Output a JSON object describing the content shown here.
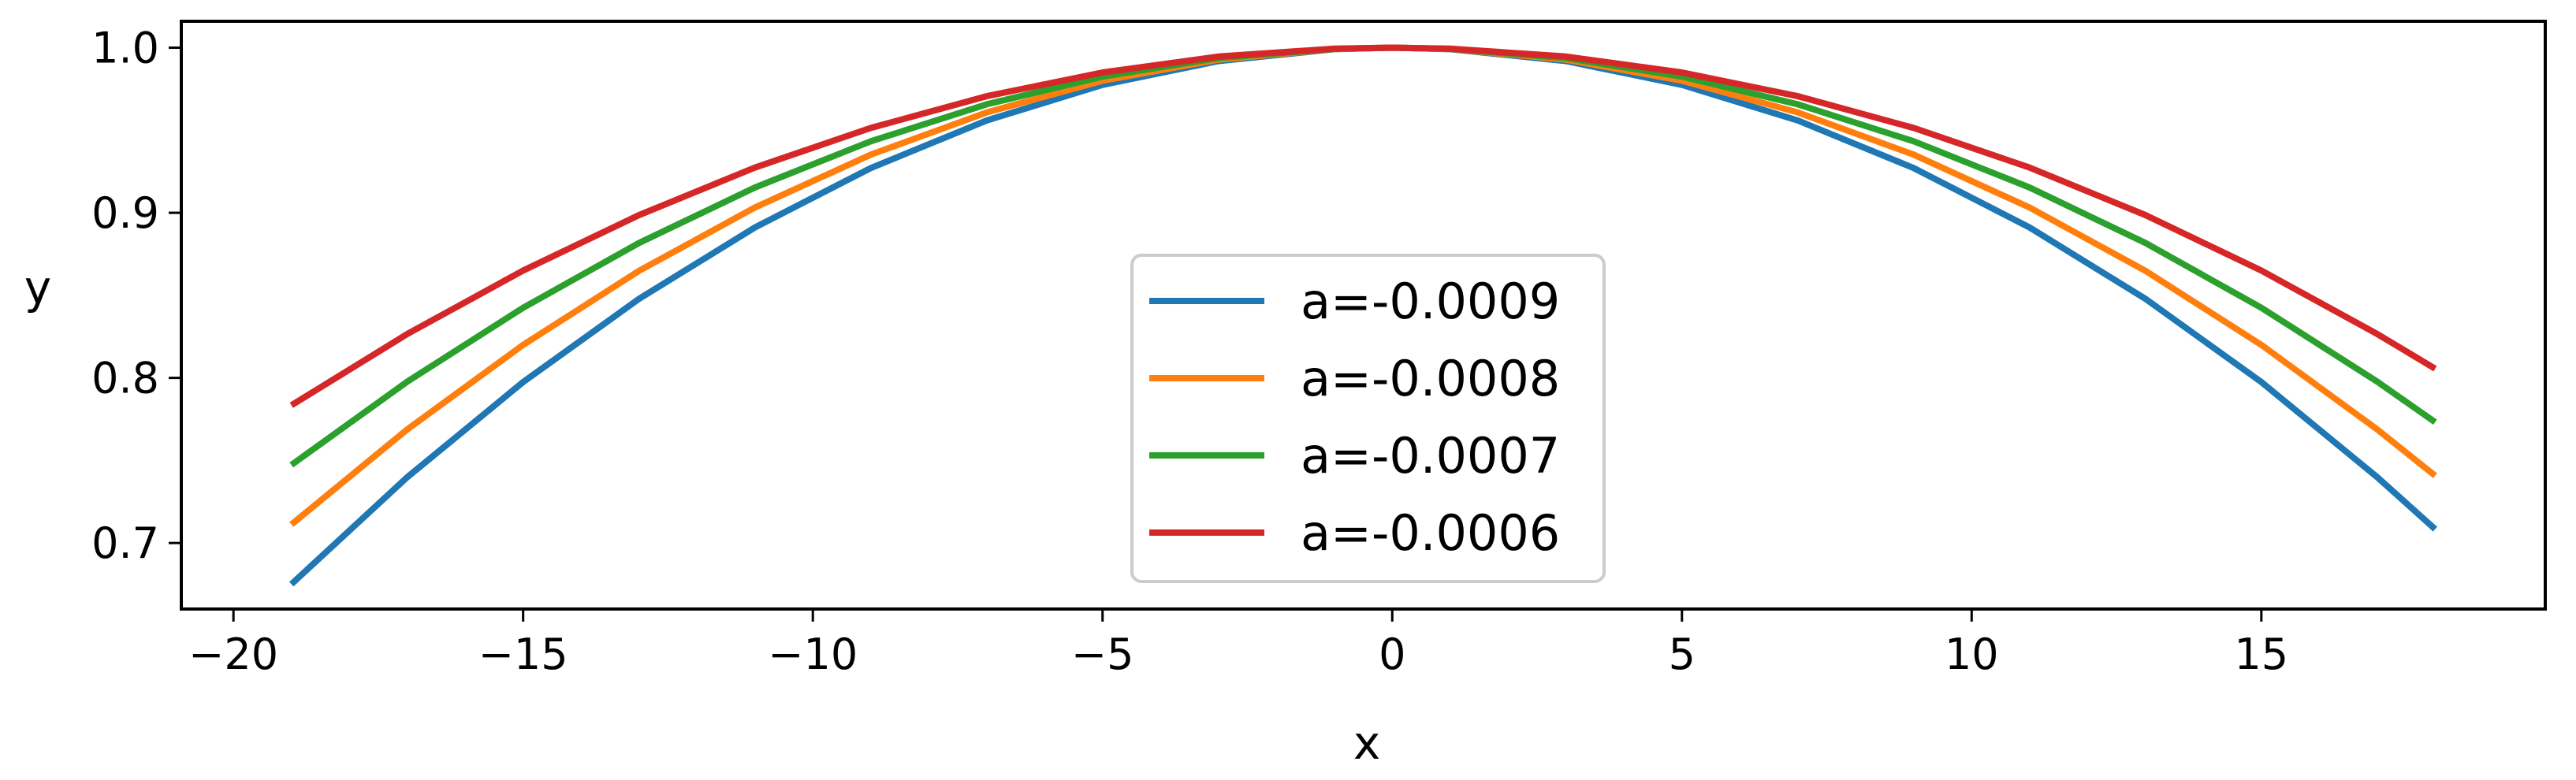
{
  "chart_data": {
    "type": "line",
    "title": "",
    "xlabel": "x",
    "ylabel": "y",
    "xlim": [
      -20.9,
      19.9
    ],
    "ylim": [
      0.66,
      1.016
    ],
    "x_ticks": [
      -20,
      -15,
      -10,
      -5,
      0,
      5,
      10,
      15
    ],
    "x_tick_labels": [
      "−20",
      "−15",
      "−10",
      "−5",
      "0",
      "5",
      "10",
      "15"
    ],
    "y_ticks": [
      0.7,
      0.8,
      0.9,
      1.0
    ],
    "y_tick_labels": [
      "0.7",
      "0.8",
      "0.9",
      "1.0"
    ],
    "grid": false,
    "legend_position": "lower center",
    "x": [
      -19,
      -17,
      -15,
      -13,
      -11,
      -9,
      -7,
      -5,
      -3,
      -1,
      0,
      1,
      3,
      5,
      7,
      9,
      11,
      13,
      15,
      17,
      18
    ],
    "series": [
      {
        "name": "a=-0.0009",
        "color": "#1f77b4",
        "values": [
          0.6751,
          0.7399,
          0.7975,
          0.8479,
          0.8911,
          0.9271,
          0.9559,
          0.9775,
          0.9919,
          0.9991,
          1.0,
          0.9991,
          0.9919,
          0.9775,
          0.9559,
          0.9271,
          0.8911,
          0.8479,
          0.7975,
          0.7399,
          0.7084
        ]
      },
      {
        "name": "a=-0.0008",
        "color": "#ff7f0e",
        "values": [
          0.7112,
          0.7688,
          0.82,
          0.8648,
          0.9032,
          0.9352,
          0.9608,
          0.98,
          0.9928,
          0.9992,
          1.0,
          0.9992,
          0.9928,
          0.98,
          0.9608,
          0.9352,
          0.9032,
          0.8648,
          0.82,
          0.7688,
          0.7408
        ]
      },
      {
        "name": "a=-0.0007",
        "color": "#2ca02c",
        "values": [
          0.7473,
          0.7977,
          0.8425,
          0.8817,
          0.9153,
          0.9433,
          0.9657,
          0.9825,
          0.9937,
          0.9993,
          1.0,
          0.9993,
          0.9937,
          0.9825,
          0.9657,
          0.9433,
          0.9153,
          0.8817,
          0.8425,
          0.7977,
          0.7732
        ]
      },
      {
        "name": "a=-0.0006",
        "color": "#d62728",
        "values": [
          0.7834,
          0.8266,
          0.865,
          0.8986,
          0.9274,
          0.9514,
          0.9706,
          0.985,
          0.9946,
          0.9994,
          1.0,
          0.9994,
          0.9946,
          0.985,
          0.9706,
          0.9514,
          0.9274,
          0.8986,
          0.865,
          0.8266,
          0.8056
        ]
      }
    ]
  }
}
